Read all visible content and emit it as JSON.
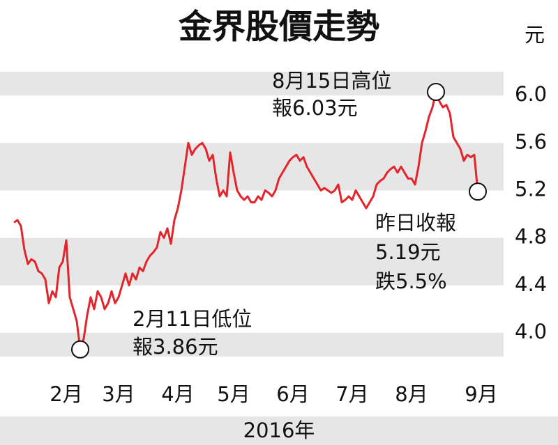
{
  "chart_data": {
    "type": "line",
    "title": "金界股價走勢",
    "unit": "元",
    "x_label": "2016年",
    "color": "#e3242b",
    "values": [
      4.93,
      4.95,
      4.9,
      4.7,
      4.58,
      4.62,
      4.6,
      4.52,
      4.5,
      4.45,
      4.25,
      4.35,
      4.3,
      4.55,
      4.6,
      4.78,
      4.3,
      4.2,
      4.1,
      3.86,
      3.95,
      4.15,
      4.3,
      4.2,
      4.35,
      4.3,
      4.2,
      4.25,
      4.35,
      4.25,
      4.3,
      4.4,
      4.5,
      4.4,
      4.5,
      4.45,
      4.55,
      4.52,
      4.6,
      4.65,
      4.68,
      4.72,
      4.85,
      4.8,
      4.88,
      4.75,
      4.95,
      5.05,
      5.2,
      5.4,
      5.6,
      5.5,
      5.55,
      5.58,
      5.6,
      5.55,
      5.45,
      5.5,
      5.3,
      5.15,
      5.2,
      5.15,
      5.52,
      5.35,
      5.2,
      5.15,
      5.12,
      5.15,
      5.1,
      5.1,
      5.15,
      5.12,
      5.2,
      5.18,
      5.15,
      5.2,
      5.3,
      5.35,
      5.4,
      5.45,
      5.48,
      5.5,
      5.45,
      5.48,
      5.4,
      5.35,
      5.3,
      5.25,
      5.2,
      5.22,
      5.2,
      5.18,
      5.2,
      5.25,
      5.1,
      5.12,
      5.15,
      5.12,
      5.2,
      5.15,
      5.1,
      5.05,
      5.1,
      5.15,
      5.25,
      5.28,
      5.3,
      5.35,
      5.38,
      5.4,
      5.35,
      5.4,
      5.35,
      5.3,
      5.3,
      5.25,
      5.4,
      5.6,
      5.7,
      5.82,
      5.9,
      6.03,
      5.95,
      5.9,
      5.92,
      5.85,
      5.65,
      5.6,
      5.55,
      5.45,
      5.5,
      5.48,
      5.5,
      5.19
    ],
    "xlim": [
      0,
      136
    ],
    "xticks": [
      {
        "value": 15,
        "label": "2月"
      },
      {
        "value": 30,
        "label": "3月"
      },
      {
        "value": 47,
        "label": "4月"
      },
      {
        "value": 63,
        "label": "5月"
      },
      {
        "value": 80,
        "label": "6月"
      },
      {
        "value": 97,
        "label": "7月"
      },
      {
        "value": 114,
        "label": "8月"
      },
      {
        "value": 134,
        "label": "9月"
      }
    ],
    "ylim": [
      3.8,
      6.2
    ],
    "yticks": [
      {
        "value": 4,
        "label": "4.0"
      },
      4.4,
      4.8,
      5.2,
      5.6,
      {
        "value": 6,
        "label": "6.0"
      }
    ],
    "annotations": [
      "8月15日高位",
      "報6.03元",
      "昨日收報",
      "5.19元",
      "跌5.5%",
      "2月11日低位",
      "報3.86元"
    ]
  }
}
